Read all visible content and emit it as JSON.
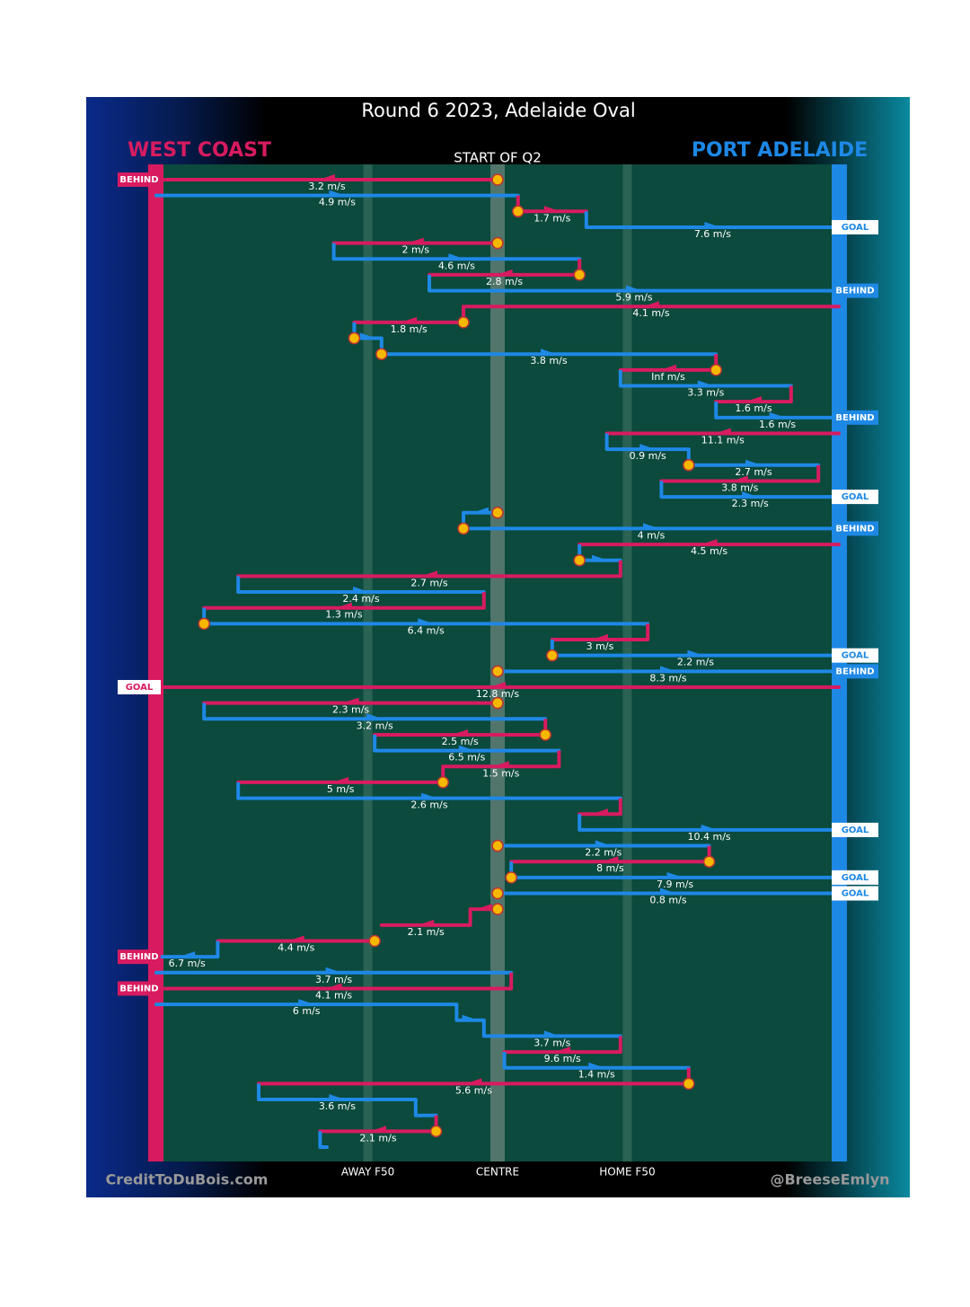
{
  "header": {
    "title": "Round 6 2023, Adelaide Oval",
    "left_team": "WEST COAST",
    "right_team": "PORT ADELAIDE",
    "period": "START OF Q2"
  },
  "field": {
    "labels": [
      {
        "text": "AWAY F50",
        "pos": 31
      },
      {
        "text": "CENTRE",
        "pos": 50
      },
      {
        "text": "HOME F50",
        "pos": 69
      }
    ]
  },
  "footer": {
    "left": "CreditToDuBois.com",
    "right": "@BreeseEmlyn"
  },
  "chains": [
    {
      "team": "WC",
      "from": 50,
      "to": 0,
      "speed": "3.2 m/s",
      "result": "BEHIND",
      "stoppage": true
    },
    {
      "team": "PA",
      "from": 0,
      "to": 53,
      "speed": "4.9 m/s"
    },
    {
      "team": "WC",
      "from": 53,
      "to": 63,
      "speed": "1.7 m/s",
      "stoppage": true
    },
    {
      "team": "PA",
      "from": 63,
      "to": 100,
      "speed": "7.6 m/s",
      "result": "GOAL"
    },
    {
      "team": "WC",
      "from": 50,
      "to": 26,
      "speed": "2 m/s",
      "stoppage": true
    },
    {
      "team": "PA",
      "from": 26,
      "to": 62,
      "speed": "4.6 m/s"
    },
    {
      "team": "WC",
      "from": 62,
      "to": 40,
      "speed": "2.8 m/s",
      "stoppage": true
    },
    {
      "team": "PA",
      "from": 40,
      "to": 100,
      "speed": "5.9 m/s",
      "result": "BEHIND"
    },
    {
      "team": "WC",
      "from": 100,
      "to": 45,
      "speed": "4.1 m/s"
    },
    {
      "team": "WC",
      "from": 45,
      "to": 29,
      "speed": "1.8 m/s",
      "stoppage": true
    },
    {
      "team": "PA",
      "from": 29,
      "to": 33,
      "stoppage": true
    },
    {
      "team": "PA",
      "from": 33,
      "to": 82,
      "speed": "3.8 m/s",
      "stoppage": true
    },
    {
      "team": "WC",
      "from": 82,
      "to": 68,
      "speed": "Inf m/s",
      "stoppage": true
    },
    {
      "team": "PA",
      "from": 68,
      "to": 93,
      "speed": "3.3 m/s"
    },
    {
      "team": "WC",
      "from": 93,
      "to": 82,
      "speed": "1.6 m/s"
    },
    {
      "team": "PA",
      "from": 82,
      "to": 100,
      "speed": "1.6 m/s",
      "result": "BEHIND"
    },
    {
      "team": "WC",
      "from": 100,
      "to": 66,
      "speed": "11.1 m/s"
    },
    {
      "team": "PA",
      "from": 66,
      "to": 78,
      "speed": "0.9 m/s"
    },
    {
      "team": "PA",
      "from": 78,
      "to": 97,
      "speed": "2.7 m/s",
      "stoppage": true
    },
    {
      "team": "WC",
      "from": 97,
      "to": 74,
      "speed": "3.8 m/s"
    },
    {
      "team": "PA",
      "from": 74,
      "to": 100,
      "speed": "2.3 m/s",
      "result": "GOAL"
    },
    {
      "team": "PA",
      "from": 50,
      "to": 45,
      "stoppage": true
    },
    {
      "team": "PA",
      "from": 45,
      "to": 100,
      "speed": "4 m/s",
      "result": "BEHIND",
      "stoppage": true
    },
    {
      "team": "WC",
      "from": 100,
      "to": 62,
      "speed": "4.5 m/s"
    },
    {
      "team": "PA",
      "from": 62,
      "to": 68,
      "stoppage": true
    },
    {
      "team": "WC",
      "from": 68,
      "to": 12,
      "speed": "2.7 m/s"
    },
    {
      "team": "PA",
      "from": 12,
      "to": 48,
      "speed": "2.4 m/s"
    },
    {
      "team": "WC",
      "from": 48,
      "to": 7,
      "speed": "1.3 m/s"
    },
    {
      "team": "PA",
      "from": 7,
      "to": 72,
      "speed": "6.4 m/s",
      "stoppage": true
    },
    {
      "team": "WC",
      "from": 72,
      "to": 58,
      "speed": "3 m/s"
    },
    {
      "team": "PA",
      "from": 58,
      "to": 100,
      "speed": "2.2 m/s",
      "result": "GOAL",
      "stoppage": true
    },
    {
      "team": "PA",
      "from": 50,
      "to": 100,
      "speed": "8.3 m/s",
      "result": "BEHIND",
      "stoppage": true
    },
    {
      "team": "WC",
      "from": 100,
      "to": 0,
      "speed": "12.8 m/s",
      "result": "GOAL"
    },
    {
      "team": "WC",
      "from": 50,
      "to": 7,
      "speed": "2.3 m/s",
      "stoppage": true
    },
    {
      "team": "PA",
      "from": 7,
      "to": 57,
      "speed": "3.2 m/s"
    },
    {
      "team": "WC",
      "from": 57,
      "to": 32,
      "speed": "2.5 m/s",
      "stoppage": true
    },
    {
      "team": "PA",
      "from": 32,
      "to": 59,
      "speed": "6.5 m/s"
    },
    {
      "team": "WC",
      "from": 59,
      "to": 42,
      "speed": "1.5 m/s"
    },
    {
      "team": "WC",
      "from": 42,
      "to": 12,
      "speed": "5 m/s",
      "stoppage": true
    },
    {
      "team": "PA",
      "from": 12,
      "to": 68,
      "speed": "2.6 m/s"
    },
    {
      "team": "WC",
      "from": 68,
      "to": 62
    },
    {
      "team": "PA",
      "from": 62,
      "to": 100,
      "speed": "10.4 m/s",
      "result": "GOAL"
    },
    {
      "team": "PA",
      "from": 50,
      "to": 81,
      "speed": "2.2 m/s",
      "stoppage": true
    },
    {
      "team": "WC",
      "from": 81,
      "to": 52,
      "speed": "8 m/s",
      "stoppage": true
    },
    {
      "team": "PA",
      "from": 52,
      "to": 100,
      "speed": "7.9 m/s",
      "result": "GOAL",
      "stoppage": true
    },
    {
      "team": "PA",
      "from": 50,
      "to": 100,
      "speed": "0.8 m/s",
      "result": "GOAL",
      "stoppage": true
    },
    {
      "team": "WC",
      "from": 50,
      "to": 46,
      "stoppage": true
    },
    {
      "team": "WC",
      "from": 46,
      "to": 33,
      "speed": "2.1 m/s"
    },
    {
      "team": "WC",
      "from": 32,
      "to": 9,
      "speed": "4.4 m/s",
      "stoppage": true
    },
    {
      "team": "PA",
      "from": 9,
      "to": 0,
      "speed": "6.7 m/s",
      "result": "BEHIND"
    },
    {
      "team": "PA",
      "from": 0,
      "to": 52,
      "speed": "3.7 m/s"
    },
    {
      "team": "WC",
      "from": 52,
      "to": 0,
      "speed": "4.1 m/s",
      "result": "BEHIND"
    },
    {
      "team": "PA",
      "from": 0,
      "to": 44,
      "speed": "6 m/s"
    },
    {
      "team": "PA",
      "from": 44,
      "to": 48
    },
    {
      "team": "PA",
      "from": 48,
      "to": 68,
      "speed": "3.7 m/s"
    },
    {
      "team": "WC",
      "from": 68,
      "to": 51,
      "speed": "9.6 m/s"
    },
    {
      "team": "PA",
      "from": 51,
      "to": 78,
      "speed": "1.4 m/s"
    },
    {
      "team": "WC",
      "from": 78,
      "to": 15,
      "speed": "5.6 m/s",
      "stoppage": true
    },
    {
      "team": "PA",
      "from": 15,
      "to": 38,
      "speed": "3.6 m/s"
    },
    {
      "team": "PA",
      "from": 38,
      "to": 41
    },
    {
      "team": "WC",
      "from": 41,
      "to": 24,
      "speed": "2.1 m/s",
      "stoppage": true
    },
    {
      "team": "PA",
      "from": 24,
      "to": 25
    }
  ]
}
